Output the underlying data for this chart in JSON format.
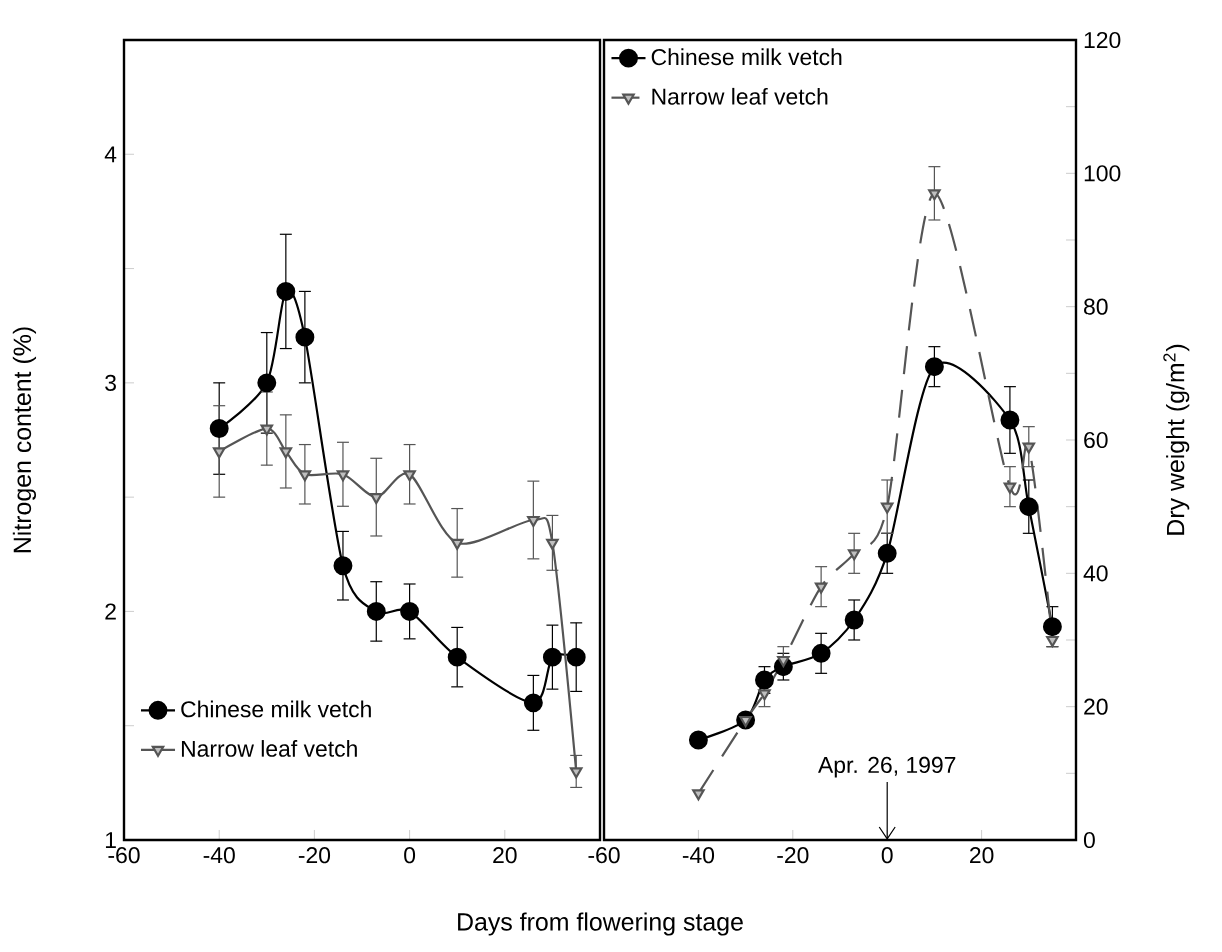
{
  "chart_data": [
    {
      "type": "line",
      "xlabel": "Days from flowering stage",
      "ylabel": "Nitrogen content (%)",
      "x": [
        -40,
        -30,
        -26,
        -22,
        -14,
        -7,
        0,
        10,
        26,
        30,
        35
      ],
      "xlim": [
        -60,
        40
      ],
      "xticks": [
        -60,
        -40,
        -20,
        0,
        20
      ],
      "ylim": [
        1,
        4.5
      ],
      "yticks": [
        1,
        {
          "value": 1.5,
          "label": null
        },
        2,
        {
          "value": 2.5,
          "label": null
        },
        3,
        {
          "value": 3.5,
          "label": null
        },
        4
      ],
      "legend": "bottom left",
      "series": [
        {
          "name": "Chinese milk vetch",
          "color": "#000000",
          "marker": "circle",
          "line_style": "solid",
          "values": [
            2.8,
            3.0,
            3.4,
            3.2,
            2.2,
            2.0,
            2.0,
            1.8,
            1.6,
            1.8,
            1.8
          ],
          "errors": [
            0.2,
            0.22,
            0.25,
            0.2,
            0.15,
            0.13,
            0.12,
            0.13,
            0.12,
            0.14,
            0.15
          ]
        },
        {
          "name": "Narrow leaf vetch",
          "color": "#555555",
          "marker": "triangle",
          "line_style": "solid",
          "values": [
            2.7,
            2.8,
            2.7,
            2.6,
            2.6,
            2.5,
            2.6,
            2.3,
            2.4,
            2.3,
            1.3
          ],
          "errors": [
            0.2,
            0.16,
            0.16,
            0.13,
            0.14,
            0.17,
            0.13,
            0.15,
            0.17,
            0.12,
            0.07
          ]
        }
      ]
    },
    {
      "type": "line",
      "ylabel": "Dry weight (g/m$^{2}$)",
      "x": [
        -40,
        -30,
        -26,
        -22,
        -14,
        -7,
        0,
        10,
        26,
        30,
        35
      ],
      "xlim": [
        -60,
        40
      ],
      "xticks": [
        -60,
        -40,
        -20,
        0,
        20
      ],
      "ylim": [
        0,
        120
      ],
      "yticks": [
        0,
        {
          "value": 10,
          "label": null
        },
        20,
        {
          "value": 30,
          "label": null
        },
        40,
        {
          "value": 50,
          "label": null
        },
        60,
        {
          "value": 70,
          "label": null
        },
        80,
        {
          "value": 90,
          "label": null
        },
        100,
        {
          "value": 110,
          "label": null
        },
        120
      ],
      "legend": "top left",
      "annotations": [
        "Apr. 26, 1997"
      ],
      "series": [
        {
          "name": "Chinese milk vetch",
          "color": "#000000",
          "marker": "circle",
          "line_style": "solid",
          "values": [
            15,
            18,
            24,
            26,
            28,
            33,
            43,
            71,
            63,
            50,
            32
          ],
          "errors": [
            null,
            null,
            2,
            2,
            3,
            3,
            3,
            3,
            5,
            4,
            3
          ]
        },
        {
          "name": "Narrow leaf vetch",
          "color": "#555555",
          "marker": "triangle",
          "line_style": "dashed",
          "values": [
            7,
            18,
            22,
            27,
            38,
            43,
            50,
            97,
            53,
            59,
            30
          ],
          "errors": [
            null,
            null,
            2,
            2,
            3,
            3,
            4,
            4,
            3,
            3,
            1
          ]
        }
      ]
    }
  ]
}
